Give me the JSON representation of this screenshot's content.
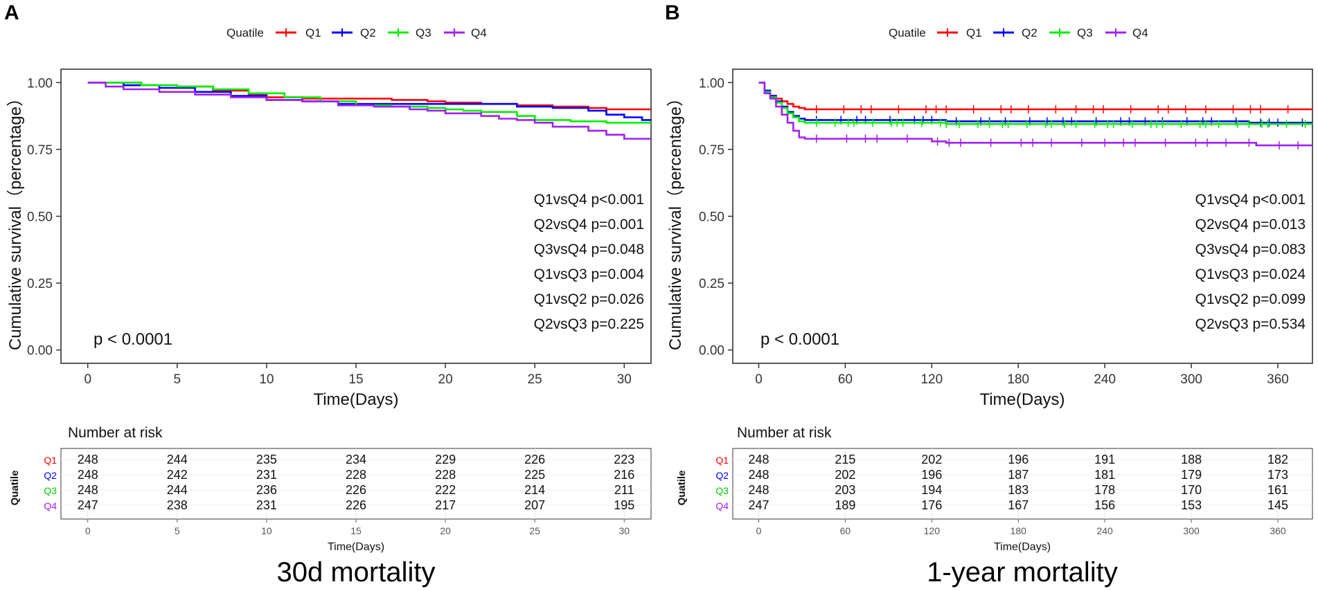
{
  "figure": {
    "legend_title": "Quatile",
    "group_labels": [
      "Q1",
      "Q2",
      "Q3",
      "Q4"
    ],
    "colors": {
      "Q1": "#ff0000",
      "Q2": "#0000ff",
      "Q3": "#00ee00",
      "Q4": "#a020f0"
    },
    "y_axis_title": "Cumulative survival（percentage）",
    "y_tick_labels": [
      "0.00",
      "0.25",
      "0.50",
      "0.75",
      "1.00"
    ],
    "risk_table_title": "Number at risk",
    "risk_y_title": "Quatile"
  },
  "panels": [
    {
      "letter": "A",
      "caption": "30d mortality",
      "x_title": "Time(Days)",
      "risk_x_title": "Time(Days)",
      "pvalue": "p < 0.0001",
      "comparisons": [
        "Q1vsQ4 p<0.001",
        "Q2vsQ4 p=0.001",
        "Q3vsQ4 p=0.048",
        "Q1vsQ3 p=0.004",
        "Q1vsQ2 p=0.026",
        "Q2vsQ3 p=0.225"
      ],
      "risk_times": [
        "0",
        "5",
        "10",
        "15",
        "20",
        "25",
        "30"
      ],
      "risk_rows": [
        [
          "248",
          "244",
          "235",
          "234",
          "229",
          "226",
          "223"
        ],
        [
          "248",
          "242",
          "231",
          "228",
          "228",
          "225",
          "216"
        ],
        [
          "248",
          "244",
          "236",
          "226",
          "222",
          "214",
          "211"
        ],
        [
          "247",
          "238",
          "231",
          "226",
          "217",
          "207",
          "195"
        ]
      ]
    },
    {
      "letter": "B",
      "caption": "1-year mortality",
      "x_title": "Time(Days)",
      "risk_x_title": "Time(Days)",
      "pvalue": "p < 0.0001",
      "comparisons": [
        "Q1vsQ4 p<0.001",
        "Q2vsQ4 p=0.013",
        "Q3vsQ4 p=0.083",
        "Q1vsQ3 p=0.024",
        "Q1vsQ2 p=0.099",
        "Q2vsQ3 p=0.534"
      ],
      "risk_times": [
        "0",
        "60",
        "120",
        "180",
        "240",
        "300",
        "360"
      ],
      "risk_rows": [
        [
          "248",
          "215",
          "202",
          "196",
          "191",
          "188",
          "182"
        ],
        [
          "248",
          "202",
          "196",
          "187",
          "181",
          "179",
          "173"
        ],
        [
          "248",
          "203",
          "194",
          "183",
          "178",
          "170",
          "161"
        ],
        [
          "247",
          "189",
          "176",
          "167",
          "156",
          "153",
          "145"
        ]
      ]
    }
  ],
  "chart_data": [
    {
      "type": "line",
      "title": "30d mortality",
      "xlabel": "Time(Days)",
      "ylabel": "Cumulative survival（percentage）",
      "xlim": [
        -1.5,
        31.5
      ],
      "ylim": [
        -0.05,
        1.05
      ],
      "xticks": [
        0,
        5,
        10,
        15,
        20,
        25,
        30
      ],
      "yticks": [
        0,
        0.25,
        0.5,
        0.75,
        1.0
      ],
      "series": [
        {
          "name": "Q1",
          "points": [
            [
              0,
              1.0
            ],
            [
              2,
              1.0
            ],
            [
              3,
              0.99
            ],
            [
              5,
              0.985
            ],
            [
              7,
              0.97
            ],
            [
              9,
              0.955
            ],
            [
              10,
              0.945
            ],
            [
              12,
              0.94
            ],
            [
              14,
              0.94
            ],
            [
              17,
              0.935
            ],
            [
              19,
              0.93
            ],
            [
              20,
              0.925
            ],
            [
              22,
              0.92
            ],
            [
              24,
              0.915
            ],
            [
              26,
              0.91
            ],
            [
              28,
              0.905
            ],
            [
              29,
              0.9
            ],
            [
              31.5,
              0.9
            ]
          ]
        },
        {
          "name": "Q2",
          "points": [
            [
              0,
              1.0
            ],
            [
              2,
              0.99
            ],
            [
              4,
              0.98
            ],
            [
              6,
              0.965
            ],
            [
              8,
              0.95
            ],
            [
              10,
              0.935
            ],
            [
              12,
              0.93
            ],
            [
              14,
              0.92
            ],
            [
              16,
              0.92
            ],
            [
              18,
              0.92
            ],
            [
              20,
              0.92
            ],
            [
              22,
              0.92
            ],
            [
              24,
              0.91
            ],
            [
              26,
              0.905
            ],
            [
              28,
              0.895
            ],
            [
              29,
              0.88
            ],
            [
              30,
              0.87
            ],
            [
              31,
              0.86
            ],
            [
              31.5,
              0.86
            ]
          ]
        },
        {
          "name": "Q3",
          "points": [
            [
              0,
              1.0
            ],
            [
              3,
              0.99
            ],
            [
              5,
              0.985
            ],
            [
              7,
              0.975
            ],
            [
              9,
              0.96
            ],
            [
              11,
              0.945
            ],
            [
              13,
              0.93
            ],
            [
              15,
              0.915
            ],
            [
              17,
              0.91
            ],
            [
              19,
              0.905
            ],
            [
              20,
              0.9
            ],
            [
              21,
              0.895
            ],
            [
              22,
              0.89
            ],
            [
              24,
              0.875
            ],
            [
              25,
              0.86
            ],
            [
              27,
              0.855
            ],
            [
              29,
              0.85
            ],
            [
              31.5,
              0.85
            ]
          ]
        },
        {
          "name": "Q4",
          "points": [
            [
              0,
              1.0
            ],
            [
              1,
              0.985
            ],
            [
              2,
              0.975
            ],
            [
              4,
              0.965
            ],
            [
              6,
              0.955
            ],
            [
              8,
              0.945
            ],
            [
              10,
              0.935
            ],
            [
              12,
              0.93
            ],
            [
              14,
              0.915
            ],
            [
              16,
              0.91
            ],
            [
              18,
              0.9
            ],
            [
              19,
              0.895
            ],
            [
              20,
              0.885
            ],
            [
              22,
              0.875
            ],
            [
              23,
              0.865
            ],
            [
              24,
              0.86
            ],
            [
              25,
              0.85
            ],
            [
              26,
              0.835
            ],
            [
              28,
              0.82
            ],
            [
              29,
              0.805
            ],
            [
              30,
              0.79
            ],
            [
              31.5,
              0.79
            ]
          ]
        }
      ],
      "annotations": [
        "p < 0.0001",
        "Q1vsQ4 p<0.001",
        "Q2vsQ4 p=0.001",
        "Q3vsQ4 p=0.048",
        "Q1vsQ3 p=0.004",
        "Q1vsQ2 p=0.026",
        "Q2vsQ3 p=0.225"
      ]
    },
    {
      "type": "line",
      "title": "1-year mortality",
      "xlabel": "Time(Days)",
      "ylabel": "Cumulative survival（percentage）",
      "xlim": [
        -18,
        384
      ],
      "ylim": [
        -0.05,
        1.05
      ],
      "xticks": [
        0,
        60,
        120,
        180,
        240,
        300,
        360
      ],
      "yticks": [
        0,
        0.25,
        0.5,
        0.75,
        1.0
      ],
      "series": [
        {
          "name": "Q1",
          "points": [
            [
              0,
              1.0
            ],
            [
              4,
              0.97
            ],
            [
              8,
              0.95
            ],
            [
              12,
              0.94
            ],
            [
              16,
              0.93
            ],
            [
              20,
              0.92
            ],
            [
              24,
              0.91
            ],
            [
              28,
              0.905
            ],
            [
              32,
              0.9
            ],
            [
              384,
              0.9
            ]
          ],
          "censor_spacing": 9
        },
        {
          "name": "Q2",
          "points": [
            [
              0,
              1.0
            ],
            [
              4,
              0.97
            ],
            [
              8,
              0.95
            ],
            [
              12,
              0.93
            ],
            [
              16,
              0.91
            ],
            [
              20,
              0.89
            ],
            [
              24,
              0.875
            ],
            [
              28,
              0.865
            ],
            [
              32,
              0.86
            ],
            [
              120,
              0.86
            ],
            [
              130,
              0.855
            ],
            [
              330,
              0.855
            ],
            [
              340,
              0.85
            ],
            [
              384,
              0.85
            ]
          ],
          "censor_spacing": 8
        },
        {
          "name": "Q3",
          "points": [
            [
              0,
              1.0
            ],
            [
              4,
              0.965
            ],
            [
              8,
              0.945
            ],
            [
              12,
              0.925
            ],
            [
              16,
              0.905
            ],
            [
              20,
              0.885
            ],
            [
              24,
              0.87
            ],
            [
              28,
              0.855
            ],
            [
              32,
              0.85
            ],
            [
              120,
              0.85
            ],
            [
              130,
              0.845
            ],
            [
              384,
              0.845
            ]
          ],
          "censor_spacing": 6
        },
        {
          "name": "Q4",
          "points": [
            [
              0,
              1.0
            ],
            [
              4,
              0.96
            ],
            [
              8,
              0.94
            ],
            [
              12,
              0.91
            ],
            [
              16,
              0.88
            ],
            [
              20,
              0.85
            ],
            [
              24,
              0.82
            ],
            [
              28,
              0.795
            ],
            [
              32,
              0.79
            ],
            [
              120,
              0.78
            ],
            [
              130,
              0.775
            ],
            [
              340,
              0.775
            ],
            [
              345,
              0.765
            ],
            [
              384,
              0.765
            ]
          ],
          "censor_spacing": 10
        }
      ],
      "annotations": [
        "p < 0.0001",
        "Q1vsQ4 p<0.001",
        "Q2vsQ4 p=0.013",
        "Q3vsQ4 p=0.083",
        "Q1vsQ3 p=0.024",
        "Q1vsQ2 p=0.099",
        "Q2vsQ3 p=0.534"
      ]
    }
  ]
}
